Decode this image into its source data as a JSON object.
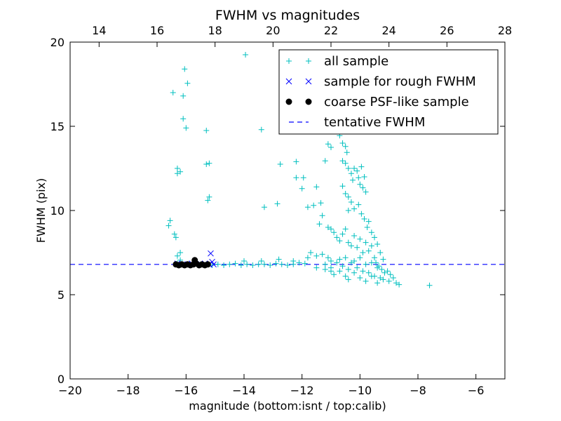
{
  "chart_data": {
    "type": "scatter",
    "title": "FWHM vs magnitudes",
    "xlabel": "magnitude (bottom:isnt / top:calib)",
    "ylabel": "FWHM (pix)",
    "xlim": [
      -20,
      -5
    ],
    "ylim": [
      0,
      20
    ],
    "top_xlim": [
      13,
      28
    ],
    "x_ticks": [
      -20,
      -18,
      -16,
      -14,
      -12,
      -10,
      -8,
      -6
    ],
    "x_tick_labels": [
      "−20",
      "−18",
      "−16",
      "−14",
      "−12",
      "−10",
      "−8",
      "−6"
    ],
    "top_ticks": [
      14,
      16,
      18,
      20,
      22,
      24,
      26,
      28
    ],
    "top_tick_labels": [
      "14",
      "16",
      "18",
      "20",
      "22",
      "24",
      "26",
      "28"
    ],
    "y_ticks": [
      0,
      5,
      10,
      15,
      20
    ],
    "y_tick_labels": [
      "0",
      "5",
      "10",
      "15",
      "20"
    ],
    "legend_position": "top-right",
    "tentative_fwhm": 6.8,
    "series": [
      {
        "name": "all sample",
        "marker": "plus",
        "color": "#00bfbf",
        "points": [
          [
            -16.6,
            9.1
          ],
          [
            -16.55,
            9.4
          ],
          [
            -16.4,
            8.6
          ],
          [
            -16.35,
            8.4
          ],
          [
            -16.45,
            17.0
          ],
          [
            -16.3,
            12.5
          ],
          [
            -16.3,
            12.2
          ],
          [
            -16.2,
            12.3
          ],
          [
            -16.05,
            18.4
          ],
          [
            -15.95,
            17.55
          ],
          [
            -16.1,
            16.8
          ],
          [
            -16.1,
            15.45
          ],
          [
            -16.0,
            14.9
          ],
          [
            -15.3,
            14.75
          ],
          [
            -15.3,
            12.75
          ],
          [
            -15.2,
            12.8
          ],
          [
            -15.25,
            10.6
          ],
          [
            -15.2,
            10.8
          ],
          [
            -16.2,
            7.5
          ],
          [
            -16.3,
            7.3
          ],
          [
            -16.2,
            7.05
          ],
          [
            -16.3,
            6.85
          ],
          [
            -16.1,
            6.8
          ],
          [
            -15.9,
            6.8
          ],
          [
            -15.7,
            6.85
          ],
          [
            -15.5,
            6.8
          ],
          [
            -15.3,
            6.8
          ],
          [
            -15.1,
            6.75
          ],
          [
            -14.9,
            6.8
          ],
          [
            -14.7,
            6.75
          ],
          [
            -14.5,
            6.8
          ],
          [
            -14.3,
            6.85
          ],
          [
            -14.1,
            6.75
          ],
          [
            -13.9,
            6.8
          ],
          [
            -13.7,
            6.75
          ],
          [
            -13.5,
            6.8
          ],
          [
            -13.3,
            6.8
          ],
          [
            -13.1,
            6.75
          ],
          [
            -12.9,
            6.85
          ],
          [
            -12.7,
            6.8
          ],
          [
            -12.5,
            6.75
          ],
          [
            -12.3,
            6.8
          ],
          [
            -12.1,
            6.9
          ],
          [
            -11.9,
            6.85
          ],
          [
            -14.0,
            7.0
          ],
          [
            -13.4,
            7.0
          ],
          [
            -12.8,
            7.1
          ],
          [
            -12.3,
            7.0
          ],
          [
            -11.8,
            7.2
          ],
          [
            -11.5,
            6.6
          ],
          [
            -11.2,
            6.5
          ],
          [
            -11.0,
            6.6
          ],
          [
            -13.95,
            19.25
          ],
          [
            -13.4,
            14.8
          ],
          [
            -13.3,
            10.2
          ],
          [
            -12.85,
            10.4
          ],
          [
            -12.75,
            12.75
          ],
          [
            -12.2,
            12.9
          ],
          [
            -12.2,
            11.95
          ],
          [
            -12.0,
            11.3
          ],
          [
            -11.95,
            11.95
          ],
          [
            -11.8,
            10.2
          ],
          [
            -11.5,
            11.4
          ],
          [
            -11.35,
            10.45
          ],
          [
            -11.2,
            12.95
          ],
          [
            -11.1,
            13.95
          ],
          [
            -11.0,
            13.75
          ],
          [
            -10.7,
            14.45
          ],
          [
            -10.6,
            14.0
          ],
          [
            -10.5,
            13.8
          ],
          [
            -10.45,
            13.45
          ],
          [
            -10.6,
            12.95
          ],
          [
            -10.5,
            12.8
          ],
          [
            -10.4,
            12.5
          ],
          [
            -10.3,
            12.2
          ],
          [
            -10.25,
            11.8
          ],
          [
            -10.2,
            12.5
          ],
          [
            -10.1,
            12.35
          ],
          [
            -10.05,
            11.95
          ],
          [
            -10.0,
            11.55
          ],
          [
            -9.9,
            11.35
          ],
          [
            -9.95,
            12.6
          ],
          [
            -9.85,
            12.0
          ],
          [
            -9.8,
            11.1
          ],
          [
            -10.6,
            11.45
          ],
          [
            -10.5,
            11.0
          ],
          [
            -10.4,
            10.8
          ],
          [
            -10.3,
            10.5
          ],
          [
            -10.4,
            10.0
          ],
          [
            -10.2,
            10.1
          ],
          [
            -10.05,
            10.35
          ],
          [
            -9.95,
            9.8
          ],
          [
            -9.85,
            9.5
          ],
          [
            -9.75,
            9.0
          ],
          [
            -9.7,
            9.35
          ],
          [
            -9.6,
            8.7
          ],
          [
            -9.5,
            8.4
          ],
          [
            -9.4,
            8.0
          ],
          [
            -9.3,
            7.5
          ],
          [
            -9.2,
            7.1
          ],
          [
            -11.6,
            10.3
          ],
          [
            -11.4,
            9.2
          ],
          [
            -11.3,
            9.7
          ],
          [
            -11.1,
            9.0
          ],
          [
            -11.0,
            8.9
          ],
          [
            -10.9,
            8.7
          ],
          [
            -10.8,
            8.4
          ],
          [
            -10.7,
            8.2
          ],
          [
            -10.6,
            8.6
          ],
          [
            -10.5,
            8.9
          ],
          [
            -10.4,
            8.1
          ],
          [
            -10.3,
            7.9
          ],
          [
            -10.2,
            8.5
          ],
          [
            -10.1,
            7.8
          ],
          [
            -10.0,
            8.3
          ],
          [
            -9.9,
            7.5
          ],
          [
            -9.8,
            8.1
          ],
          [
            -9.7,
            7.6
          ],
          [
            -9.6,
            7.9
          ],
          [
            -9.5,
            7.2
          ],
          [
            -9.45,
            6.9
          ],
          [
            -9.35,
            6.7
          ],
          [
            -9.25,
            6.5
          ],
          [
            -9.15,
            6.3
          ],
          [
            -9.05,
            6.4
          ],
          [
            -8.95,
            6.2
          ],
          [
            -8.85,
            6.0
          ],
          [
            -8.75,
            5.7
          ],
          [
            -8.65,
            5.6
          ],
          [
            -7.6,
            5.55
          ],
          [
            -11.1,
            7.2
          ],
          [
            -11.0,
            7.0
          ],
          [
            -10.8,
            6.9
          ],
          [
            -10.7,
            7.1
          ],
          [
            -10.6,
            6.7
          ],
          [
            -10.5,
            7.2
          ],
          [
            -10.4,
            6.5
          ],
          [
            -10.3,
            6.9
          ],
          [
            -10.2,
            7.0
          ],
          [
            -10.1,
            6.6
          ],
          [
            -10.0,
            7.2
          ],
          [
            -9.9,
            6.4
          ],
          [
            -9.8,
            6.8
          ],
          [
            -9.7,
            6.3
          ],
          [
            -9.6,
            6.9
          ],
          [
            -9.5,
            6.1
          ],
          [
            -9.4,
            6.6
          ],
          [
            -9.3,
            6.0
          ],
          [
            -11.7,
            7.5
          ],
          [
            -11.5,
            7.3
          ],
          [
            -11.3,
            7.4
          ],
          [
            -11.2,
            6.8
          ],
          [
            -11.0,
            6.4
          ],
          [
            -10.9,
            6.2
          ],
          [
            -10.7,
            6.4
          ],
          [
            -10.5,
            6.1
          ],
          [
            -10.4,
            5.9
          ],
          [
            -10.2,
            6.3
          ],
          [
            -10.0,
            6.0
          ],
          [
            -9.8,
            5.8
          ],
          [
            -9.6,
            6.1
          ],
          [
            -9.4,
            5.7
          ],
          [
            -9.2,
            5.9
          ],
          [
            -9.0,
            5.8
          ]
        ]
      },
      {
        "name": "sample for rough FWHM",
        "marker": "x",
        "color": "#0000ff",
        "points": [
          [
            -16.3,
            6.85
          ],
          [
            -16.1,
            6.8
          ],
          [
            -15.95,
            6.8
          ],
          [
            -15.8,
            6.85
          ],
          [
            -15.65,
            6.8
          ],
          [
            -15.5,
            6.8
          ],
          [
            -15.35,
            6.85
          ],
          [
            -15.2,
            6.8
          ],
          [
            -15.15,
            7.45
          ],
          [
            -15.1,
            6.95
          ],
          [
            -15.05,
            6.8
          ]
        ]
      },
      {
        "name": "coarse PSF-like sample",
        "marker": "dot",
        "color": "#000000",
        "points": [
          [
            -16.35,
            6.8
          ],
          [
            -16.25,
            6.75
          ],
          [
            -16.15,
            6.8
          ],
          [
            -16.05,
            6.75
          ],
          [
            -15.95,
            6.8
          ],
          [
            -15.85,
            6.75
          ],
          [
            -15.75,
            6.8
          ],
          [
            -15.7,
            7.05
          ],
          [
            -15.65,
            6.85
          ],
          [
            -15.55,
            6.75
          ],
          [
            -15.45,
            6.8
          ],
          [
            -15.35,
            6.75
          ],
          [
            -15.25,
            6.8
          ]
        ]
      }
    ],
    "legend": [
      {
        "label": "all sample",
        "marker": "plus",
        "color": "#00bfbf"
      },
      {
        "label": "sample for rough FWHM",
        "marker": "x",
        "color": "#0000ff"
      },
      {
        "label": "coarse PSF-like sample",
        "marker": "dot",
        "color": "#000000"
      },
      {
        "label": "tentative FWHM",
        "marker": "dashed-line",
        "color": "#0000ff"
      }
    ]
  }
}
